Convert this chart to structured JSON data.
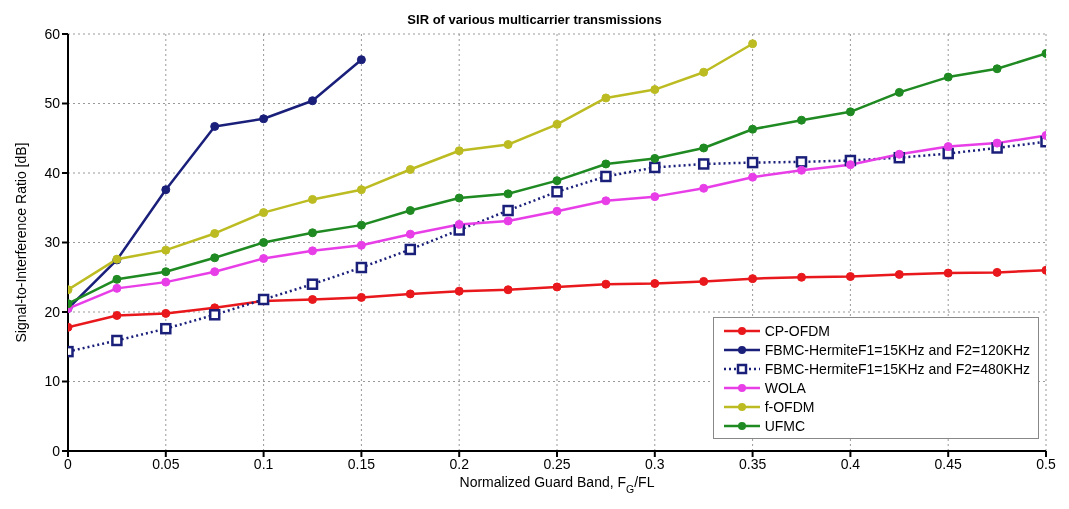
{
  "chart_data": {
    "type": "line",
    "title": "SIR of various multicarrier transmissions",
    "xlabel": "Normalized Guard Band, F$_{G}$/FL",
    "ylabel": "Signal-to-Interference Ratio [dB]",
    "x": [
      0,
      0.025,
      0.05,
      0.075,
      0.1,
      0.125,
      0.15,
      0.175,
      0.2,
      0.225,
      0.25,
      0.275,
      0.3,
      0.325,
      0.35,
      0.375,
      0.4,
      0.425,
      0.45,
      0.475,
      0.5
    ],
    "xlim": [
      0,
      0.5
    ],
    "xticks": [
      0,
      0.05,
      0.1,
      0.15,
      0.2,
      0.25,
      0.3,
      0.35,
      0.4,
      0.45,
      0.5
    ],
    "ylim": [
      0,
      60
    ],
    "yticks": [
      0,
      10,
      20,
      30,
      40,
      50,
      60
    ],
    "grid": true,
    "legend": "bottom right",
    "marker": "circle",
    "line_style": "solid",
    "series": [
      {
        "name": "CP-OFDM",
        "color": "#e8181c",
        "values": [
          17.8,
          19.5,
          19.8,
          20.6,
          21.6,
          21.8,
          22.1,
          22.6,
          23.0,
          23.2,
          23.6,
          24.0,
          24.1,
          24.4,
          24.8,
          25.0,
          25.1,
          25.4,
          25.6,
          25.7,
          26.0
        ]
      },
      {
        "name": "FBMC-HermiteF1=15KHz and F2=120KHz",
        "color": "#1a1f7a",
        "values": [
          20.5,
          27.5,
          37.6,
          46.7,
          47.8,
          50.4,
          56.3,
          null,
          null,
          null,
          null,
          null,
          null,
          null,
          null,
          null,
          null,
          null,
          null,
          null,
          null
        ]
      },
      {
        "name": "FBMC-HermiteF1=15KHz and F2=480KHz",
        "color": "#1a1f7a",
        "marker": "square",
        "line_style": "dotted",
        "values": [
          14.3,
          15.9,
          17.6,
          19.6,
          21.8,
          24.0,
          26.4,
          29.0,
          31.8,
          34.6,
          37.3,
          39.5,
          40.8,
          41.3,
          41.5,
          41.6,
          41.8,
          42.2,
          42.8,
          43.6,
          44.5
        ]
      },
      {
        "name": "WOLA",
        "color": "#e83ee8",
        "values": [
          20.5,
          23.4,
          24.3,
          25.8,
          27.7,
          28.8,
          29.6,
          31.2,
          32.6,
          33.1,
          34.5,
          36.0,
          36.6,
          37.8,
          39.4,
          40.4,
          41.2,
          42.7,
          43.8,
          44.3,
          45.4
        ]
      },
      {
        "name": "f-OFDM",
        "color": "#bcbc22",
        "values": [
          23.2,
          27.6,
          28.9,
          31.3,
          34.3,
          36.2,
          37.6,
          40.5,
          43.2,
          44.1,
          47.0,
          50.8,
          52.0,
          54.5,
          58.6,
          null,
          null,
          null,
          null,
          null,
          null
        ]
      },
      {
        "name": "UFMC",
        "color": "#1f8a22",
        "values": [
          21.2,
          24.7,
          25.8,
          27.8,
          30.0,
          31.4,
          32.5,
          34.6,
          36.4,
          37.0,
          38.9,
          41.3,
          42.1,
          43.6,
          46.3,
          47.6,
          48.8,
          51.6,
          53.8,
          55.0,
          57.2
        ]
      }
    ]
  }
}
